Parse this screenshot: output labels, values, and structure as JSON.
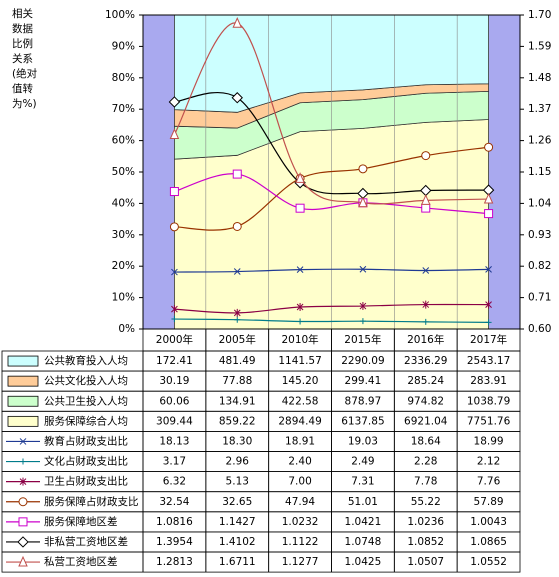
{
  "chart_data": {
    "type": "combo",
    "stacking": "percent",
    "y_label_lines": [
      "相关",
      "数据",
      "比例",
      "关系",
      "(绝对",
      "值转",
      "为%)"
    ],
    "categories": [
      "2000年",
      "2005年",
      "2010年",
      "2015年",
      "2016年",
      "2017年"
    ],
    "ylim": [
      0,
      100
    ],
    "yticks": [
      {
        "value": 0,
        "label": "0%"
      },
      {
        "value": 10,
        "label": "10%"
      },
      {
        "value": 20,
        "label": "20%"
      },
      {
        "value": 30,
        "label": "30%"
      },
      {
        "value": 40,
        "label": "40%"
      },
      {
        "value": 50,
        "label": "50%"
      },
      {
        "value": 60,
        "label": "60%"
      },
      {
        "value": 70,
        "label": "70%"
      },
      {
        "value": 80,
        "label": "80%"
      },
      {
        "value": 90,
        "label": "90%"
      },
      {
        "value": 100,
        "label": "100%"
      }
    ],
    "y2lim": [
      0.6,
      1.7
    ],
    "y2ticks": [
      {
        "value": 0.6,
        "label": "0.60"
      },
      {
        "value": 0.71,
        "label": "0.71"
      },
      {
        "value": 0.82,
        "label": "0.82"
      },
      {
        "value": 0.93,
        "label": "0.93"
      },
      {
        "value": 1.04,
        "label": "1.04"
      },
      {
        "value": 1.15,
        "label": "1.15"
      },
      {
        "value": 1.26,
        "label": "1.26"
      },
      {
        "value": 1.37,
        "label": "1.37"
      },
      {
        "value": 1.48,
        "label": "1.48"
      },
      {
        "value": 1.59,
        "label": "1.59"
      },
      {
        "value": 1.7,
        "label": "1.70"
      }
    ],
    "plot_background": "#a9a9ef",
    "series": [
      {
        "name": "公共教育投入人均",
        "type": "area",
        "color": "#ccffff",
        "values": [
          172.41,
          481.49,
          1141.57,
          2290.09,
          2336.29,
          2543.17
        ],
        "value_labels": [
          "172.41",
          "481.49",
          "1141.57",
          "2290.09",
          "2336.29",
          "2543.17"
        ]
      },
      {
        "name": "公共文化投入人均",
        "type": "area",
        "color": "#ffcc99",
        "values": [
          30.19,
          77.88,
          145.2,
          299.41,
          285.24,
          283.91
        ],
        "value_labels": [
          "30.19",
          "77.88",
          "145.20",
          "299.41",
          "285.24",
          "283.91"
        ]
      },
      {
        "name": "公共卫生投入人均",
        "type": "area",
        "color": "#ccffcc",
        "values": [
          60.06,
          134.91,
          422.58,
          878.97,
          974.82,
          1038.79
        ],
        "value_labels": [
          "60.06",
          "134.91",
          "422.58",
          "878.97",
          "974.82",
          "1038.79"
        ]
      },
      {
        "name": "服务保障综合人均",
        "type": "area",
        "color": "#ffffcc",
        "values": [
          309.44,
          859.22,
          2894.49,
          6137.85,
          6921.04,
          7751.76
        ],
        "value_labels": [
          "309.44",
          "859.22",
          "2894.49",
          "6137.85",
          "6921.04",
          "7751.76"
        ]
      },
      {
        "name": "教育占财政支出比",
        "type": "line",
        "marker": "x",
        "color": "#1f3a93",
        "values": [
          18.13,
          18.3,
          18.91,
          19.03,
          18.64,
          18.99
        ],
        "value_labels": [
          "18.13",
          "18.30",
          "18.91",
          "19.03",
          "18.64",
          "18.99"
        ]
      },
      {
        "name": "文化占财政支出比",
        "type": "line",
        "marker": "plus",
        "color": "#007b8a",
        "values": [
          3.17,
          2.96,
          2.4,
          2.49,
          2.28,
          2.12
        ],
        "value_labels": [
          "3.17",
          "2.96",
          "2.40",
          "2.49",
          "2.28",
          "2.12"
        ]
      },
      {
        "name": "卫生占财政支出比",
        "type": "line",
        "marker": "star",
        "color": "#8b0045",
        "values": [
          6.32,
          5.13,
          7.0,
          7.31,
          7.78,
          7.76
        ],
        "value_labels": [
          "6.32",
          "5.13",
          "7.00",
          "7.31",
          "7.78",
          "7.76"
        ]
      },
      {
        "name": "服务保障占财政支比",
        "type": "line",
        "marker": "circle",
        "color": "#993300",
        "values": [
          32.54,
          32.65,
          47.94,
          51.01,
          55.22,
          57.89
        ],
        "value_labels": [
          "32.54",
          "32.65",
          "47.94",
          "51.01",
          "55.22",
          "57.89"
        ]
      },
      {
        "name": "服务保障地区差",
        "type": "line",
        "axis": "y2",
        "marker": "square",
        "color": "#cc00cc",
        "values": [
          1.0816,
          1.1427,
          1.0232,
          1.0421,
          1.0236,
          1.0043
        ],
        "value_labels": [
          "1.0816",
          "1.1427",
          "1.0232",
          "1.0421",
          "1.0236",
          "1.0043"
        ]
      },
      {
        "name": "非私营工资地区差",
        "type": "line",
        "axis": "y2",
        "marker": "diamond",
        "color": "#000000",
        "values": [
          1.3954,
          1.4102,
          1.1122,
          1.0748,
          1.0852,
          1.0865
        ],
        "value_labels": [
          "1.3954",
          "1.4102",
          "1.1122",
          "1.0748",
          "1.0852",
          "1.0865"
        ]
      },
      {
        "name": "私营工资地区差",
        "type": "line",
        "axis": "y2",
        "marker": "triangle",
        "color": "#c0504d",
        "values": [
          1.2813,
          1.6711,
          1.1277,
          1.0425,
          1.0507,
          1.0552
        ],
        "value_labels": [
          "1.2813",
          "1.6711",
          "1.1277",
          "1.0425",
          "1.0507",
          "1.0552"
        ]
      }
    ]
  }
}
